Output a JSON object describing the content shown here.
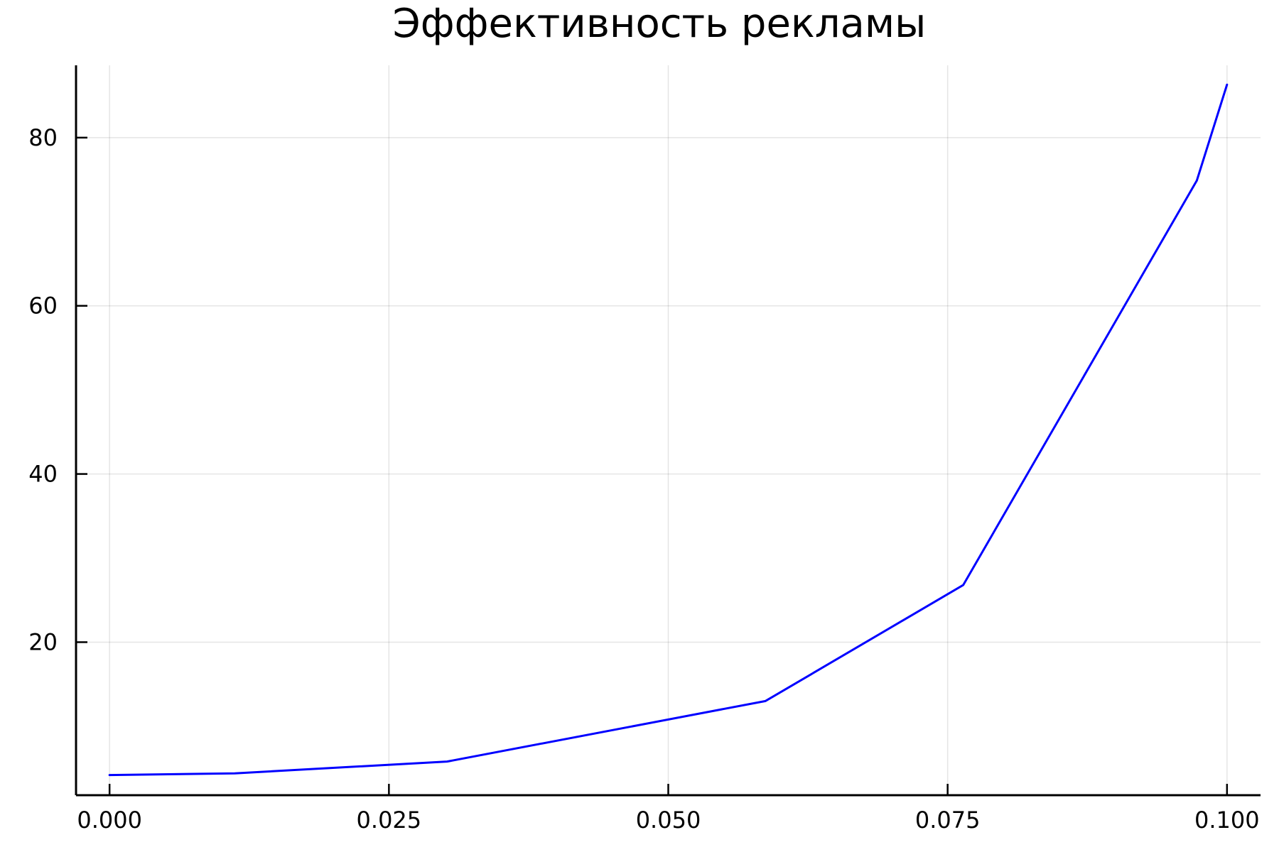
{
  "chart_data": {
    "type": "line",
    "title": "Эффективность рекламы",
    "xlabel": "",
    "ylabel": "",
    "xlim": [
      -0.003,
      0.103
    ],
    "ylim": [
      1.8,
      88.6
    ],
    "x_ticks": [
      0.0,
      0.025,
      0.05,
      0.075,
      0.1
    ],
    "x_tick_labels": [
      "0.000",
      "0.025",
      "0.050",
      "0.075",
      "0.100"
    ],
    "y_ticks": [
      20,
      40,
      60,
      80
    ],
    "y_tick_labels": [
      "20",
      "40",
      "60",
      "80"
    ],
    "grid": true,
    "legend": "none",
    "series": [
      {
        "color": "#0000ff",
        "x": [
          0.0,
          0.0112,
          0.0302,
          0.0587,
          0.0764,
          0.0973,
          0.1
        ],
        "y": [
          4.2,
          4.4,
          5.8,
          13.0,
          26.8,
          74.9,
          86.3
        ]
      }
    ]
  }
}
